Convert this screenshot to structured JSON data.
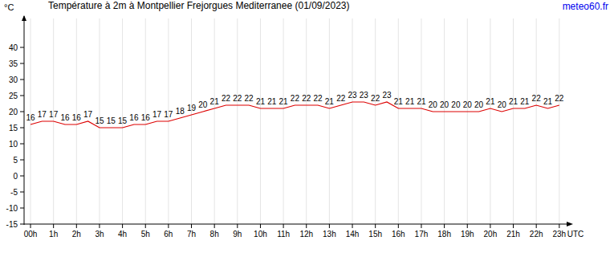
{
  "chart_data": {
    "type": "line",
    "title": "Température à 2m à Montpellier Frejorgues Mediterranee (01/09/2023)",
    "source": "meteo60.fr",
    "y_label": "°C",
    "x_label": "UTC",
    "x": [
      0,
      0.5,
      1,
      1.5,
      2,
      2.5,
      3,
      3.5,
      4,
      4.5,
      5,
      5.5,
      6,
      6.5,
      7,
      7.5,
      8,
      8.5,
      9,
      9.5,
      10,
      10.5,
      11,
      11.5,
      12,
      12.5,
      13,
      13.5,
      14,
      14.5,
      15,
      15.5,
      16,
      16.5,
      17,
      17.5,
      18,
      18.5,
      19,
      19.5,
      20,
      20.5,
      21,
      21.5,
      22,
      22.5,
      23
    ],
    "values": [
      16,
      17,
      17,
      16,
      16,
      17,
      15,
      15,
      15,
      16,
      16,
      17,
      17,
      18,
      19,
      20,
      21,
      22,
      22,
      22,
      21,
      21,
      21,
      22,
      22,
      22,
      21,
      22,
      23,
      23,
      22,
      23,
      21,
      21,
      21,
      20,
      20,
      20,
      20,
      20,
      21,
      20,
      21,
      21,
      22,
      21,
      22
    ],
    "color": "#dd0000",
    "data_labels": true,
    "grid": true,
    "xlim": [
      -0.28,
      23.39
    ],
    "ylim": [
      -15,
      49
    ],
    "xticks": [
      {
        "value": 0,
        "label": "00h"
      },
      {
        "value": 1,
        "label": "1h"
      },
      {
        "value": 2,
        "label": "2h"
      },
      {
        "value": 3,
        "label": "3h"
      },
      {
        "value": 4,
        "label": "4h"
      },
      {
        "value": 5,
        "label": "5h"
      },
      {
        "value": 6,
        "label": "6h"
      },
      {
        "value": 7,
        "label": "7h"
      },
      {
        "value": 8,
        "label": "8h"
      },
      {
        "value": 9,
        "label": "9h"
      },
      {
        "value": 10,
        "label": "10h"
      },
      {
        "value": 11,
        "label": "11h"
      },
      {
        "value": 12,
        "label": "12h"
      },
      {
        "value": 13,
        "label": "13h"
      },
      {
        "value": 14,
        "label": "14h"
      },
      {
        "value": 15,
        "label": "15h"
      },
      {
        "value": 16,
        "label": "16h"
      },
      {
        "value": 17,
        "label": "17h"
      },
      {
        "value": 18,
        "label": "18h"
      },
      {
        "value": 19,
        "label": "19h"
      },
      {
        "value": 20,
        "label": "20h"
      },
      {
        "value": 21,
        "label": "21h"
      },
      {
        "value": 22,
        "label": "22h"
      },
      {
        "value": 23,
        "label": "23h"
      }
    ],
    "yticks": [
      -15,
      -10,
      -5,
      0,
      5,
      10,
      15,
      20,
      25,
      30,
      35,
      40
    ]
  }
}
